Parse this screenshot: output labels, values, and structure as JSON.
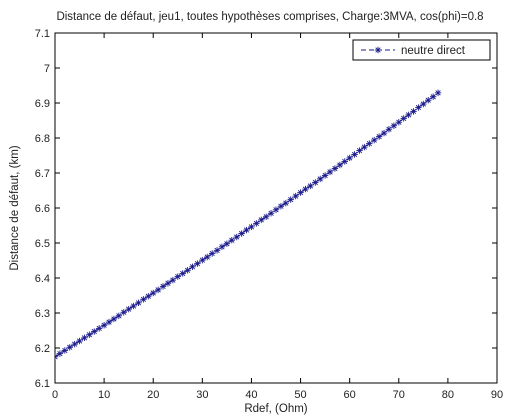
{
  "chart_data": {
    "type": "line",
    "title": "Distance de défaut, jeu1, toutes hypothèses comprises, Charge:3MVA, cos(phi)=0.8",
    "xlabel": "Rdef, (Ohm)",
    "ylabel": "Distance de défaut, (km)",
    "xlim": [
      0,
      90
    ],
    "ylim": [
      6.1,
      7.1
    ],
    "xticks": [
      "0",
      "10",
      "20",
      "30",
      "40",
      "50",
      "60",
      "70",
      "80",
      "90"
    ],
    "yticks": [
      "6.1",
      "6.2",
      "6.3",
      "6.4",
      "6.5",
      "6.6",
      "6.7",
      "6.8",
      "6.9",
      "7",
      "7.1"
    ],
    "grid": false,
    "legend_position": "top-right",
    "series": [
      {
        "name": "neutre direct",
        "color": "#1a1a8c",
        "line_style": "dashed",
        "marker": "asterisk",
        "x": [
          0,
          1,
          2,
          3,
          4,
          5,
          6,
          7,
          8,
          9,
          10,
          11,
          12,
          13,
          14,
          15,
          16,
          17,
          18,
          19,
          20,
          21,
          22,
          23,
          24,
          25,
          26,
          27,
          28,
          29,
          30,
          31,
          32,
          33,
          34,
          35,
          36,
          37,
          38,
          39,
          40,
          41,
          42,
          43,
          44,
          45,
          46,
          47,
          48,
          49,
          50,
          51,
          52,
          53,
          54,
          55,
          56,
          57,
          58,
          59,
          60,
          61,
          62,
          63,
          64,
          65,
          66,
          67,
          68,
          69,
          70,
          71,
          72,
          73,
          74,
          75,
          76,
          77,
          78
        ],
        "y": [
          6.175,
          6.184,
          6.193,
          6.202,
          6.211,
          6.22,
          6.229,
          6.238,
          6.247,
          6.256,
          6.265,
          6.274,
          6.283,
          6.292,
          6.302,
          6.311,
          6.32,
          6.329,
          6.339,
          6.348,
          6.357,
          6.366,
          6.376,
          6.385,
          6.394,
          6.404,
          6.413,
          6.422,
          6.432,
          6.441,
          6.451,
          6.46,
          6.47,
          6.479,
          6.489,
          6.498,
          6.508,
          6.517,
          6.527,
          6.537,
          6.546,
          6.556,
          6.566,
          6.575,
          6.585,
          6.595,
          6.605,
          6.614,
          6.624,
          6.634,
          6.644,
          6.654,
          6.663,
          6.673,
          6.683,
          6.693,
          6.703,
          6.713,
          6.723,
          6.733,
          6.743,
          6.753,
          6.764,
          6.774,
          6.784,
          6.794,
          6.804,
          6.814,
          6.825,
          6.835,
          6.845,
          6.856,
          6.866,
          6.876,
          6.887,
          6.897,
          6.908,
          6.918,
          6.929
        ]
      }
    ]
  }
}
